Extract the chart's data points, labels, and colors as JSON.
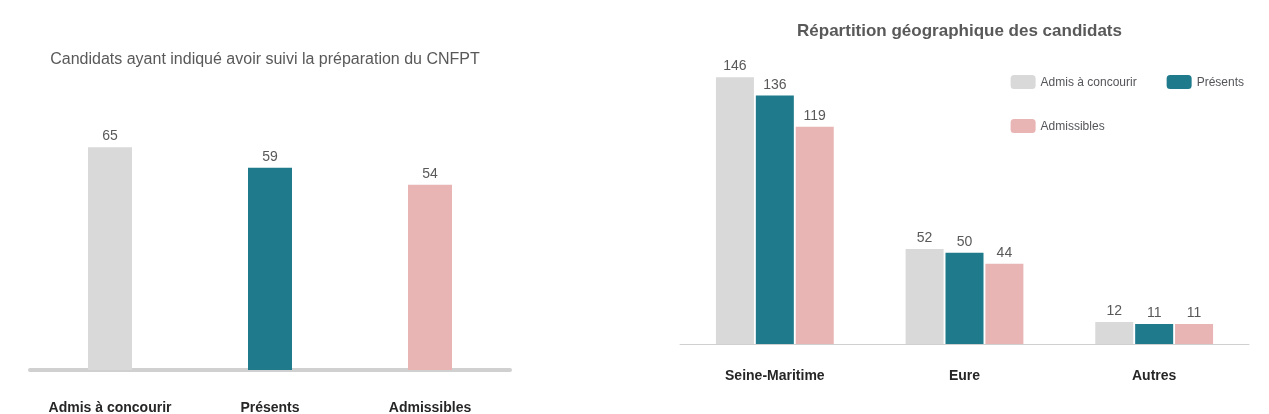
{
  "chart_data": [
    {
      "type": "bar",
      "title": "Candidats ayant indiqué avoir suivi la préparation du CNFPT",
      "categories": [
        "Admis à concourir",
        "Présents",
        "Admissibles"
      ],
      "values": [
        65,
        59,
        54
      ],
      "colors": [
        "#d9d9d9",
        "#1f7a8c",
        "#e8b4b4"
      ],
      "data_labels": true,
      "tick_labels": "x",
      "grid": false,
      "legend": false
    },
    {
      "type": "bar",
      "title": "Répartition géographique des candidats",
      "categories": [
        "Seine-Maritime",
        "Eure",
        "Autres"
      ],
      "series": [
        {
          "name": "Admis à concourir",
          "color": "#d9d9d9",
          "values": [
            146,
            52,
            12
          ]
        },
        {
          "name": "Présents",
          "color": "#1f7a8c",
          "values": [
            136,
            50,
            11
          ]
        },
        {
          "name": "Admissibles",
          "color": "#e8b4b4",
          "values": [
            119,
            44,
            11
          ]
        }
      ],
      "data_labels": true,
      "tick_labels": "x",
      "grid": false,
      "legend": "top right"
    }
  ]
}
